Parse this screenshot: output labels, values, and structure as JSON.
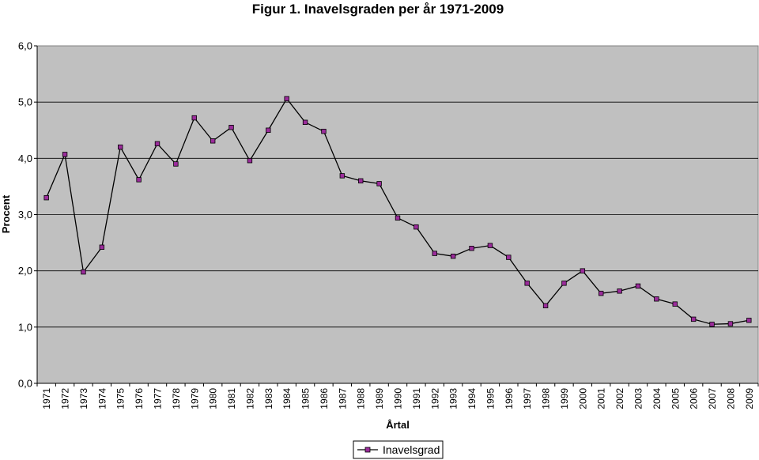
{
  "chart_data": {
    "type": "line",
    "title": "Figur 1. Inavelsgraden per år 1971-2009",
    "xlabel": "Årtal",
    "ylabel": "Procent",
    "ylim": [
      0,
      6
    ],
    "yticks": [
      "0,0",
      "1,0",
      "2,0",
      "3,0",
      "4,0",
      "5,0",
      "6,0"
    ],
    "grid": "horizontal",
    "legend_position": "bottom",
    "plot_background": "#c0c0c0",
    "line_color": "#000000",
    "marker_color": "#9b2c9b",
    "categories": [
      "1971",
      "1972",
      "1973",
      "1974",
      "1975",
      "1976",
      "1977",
      "1978",
      "1979",
      "1980",
      "1981",
      "1982",
      "1983",
      "1984",
      "1985",
      "1986",
      "1987",
      "1988",
      "1989",
      "1990",
      "1991",
      "1992",
      "1993",
      "1994",
      "1995",
      "1996",
      "1997",
      "1998",
      "1999",
      "2000",
      "2001",
      "2002",
      "2003",
      "2004",
      "2005",
      "2006",
      "2007",
      "2008",
      "2009"
    ],
    "series": [
      {
        "name": "Inavelsgrad",
        "values": [
          3.3,
          4.07,
          1.98,
          2.42,
          4.2,
          3.62,
          4.26,
          3.9,
          4.72,
          4.31,
          4.55,
          3.96,
          4.5,
          5.06,
          4.64,
          4.48,
          3.69,
          3.6,
          3.55,
          2.94,
          2.78,
          2.31,
          2.26,
          2.4,
          2.45,
          2.24,
          1.78,
          1.38,
          1.78,
          2.0,
          1.6,
          1.64,
          1.73,
          1.5,
          1.41,
          1.14,
          1.05,
          1.06,
          1.12
        ]
      }
    ]
  }
}
